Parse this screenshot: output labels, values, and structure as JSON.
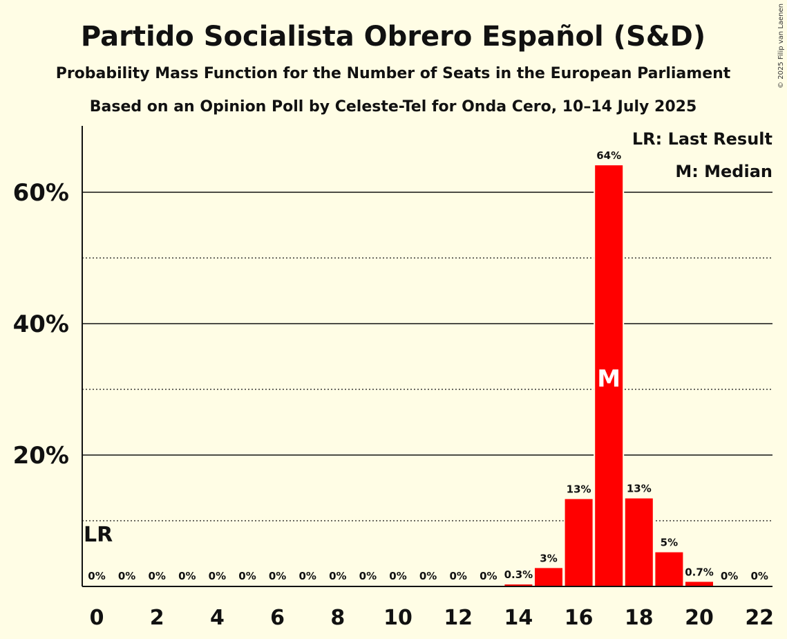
{
  "chart_data": {
    "type": "bar",
    "title": "Partido Socialista Obrero Español (S&D)",
    "subtitle": "Probability Mass Function for the Number of Seats in the European Parliament",
    "source": "Based on an Opinion Poll by Celeste-Tel for Onda Cero, 10–14 July 2025",
    "copyright": "© 2025 Filip van Laenen",
    "xlabel": "",
    "ylabel": "",
    "ylim": [
      0,
      70
    ],
    "x": [
      0,
      1,
      2,
      3,
      4,
      5,
      6,
      7,
      8,
      9,
      10,
      11,
      12,
      13,
      14,
      15,
      16,
      17,
      18,
      19,
      20,
      21,
      22
    ],
    "values": [
      0,
      0,
      0,
      0,
      0,
      0,
      0,
      0,
      0,
      0,
      0,
      0,
      0,
      0,
      0.3,
      2.8,
      13.3,
      64.1,
      13.4,
      5.2,
      0.7,
      0,
      0
    ],
    "value_labels": [
      "0%",
      "0%",
      "0%",
      "0%",
      "0%",
      "0%",
      "0%",
      "0%",
      "0%",
      "0%",
      "0%",
      "0%",
      "0%",
      "0%",
      "0.3%",
      "3%",
      "13%",
      "64%",
      "13%",
      "5%",
      "0.7%",
      "0%",
      "0%"
    ],
    "x_tick_labels": [
      {
        "x": 0,
        "label": "0"
      },
      {
        "x": 2,
        "label": "2"
      },
      {
        "x": 4,
        "label": "4"
      },
      {
        "x": 6,
        "label": "6"
      },
      {
        "x": 8,
        "label": "8"
      },
      {
        "x": 10,
        "label": "10"
      },
      {
        "x": 12,
        "label": "12"
      },
      {
        "x": 14,
        "label": "14"
      },
      {
        "x": 16,
        "label": "16"
      },
      {
        "x": 18,
        "label": "18"
      },
      {
        "x": 20,
        "label": "20"
      },
      {
        "x": 22,
        "label": "22"
      }
    ],
    "y_ticks": [
      {
        "value": 20,
        "label": "20%"
      },
      {
        "value": 40,
        "label": "40%"
      },
      {
        "value": 60,
        "label": "60%"
      }
    ],
    "y_dotted_gridlines": [
      10,
      30,
      50
    ],
    "last_result": {
      "x": 0,
      "label": "LR"
    },
    "median": {
      "x": 17,
      "label": "M"
    },
    "legend": [
      "LR: Last Result",
      "M: Median"
    ],
    "colors": {
      "bar": "#ff0000",
      "background": "#fffde5",
      "text": "#111111"
    }
  }
}
